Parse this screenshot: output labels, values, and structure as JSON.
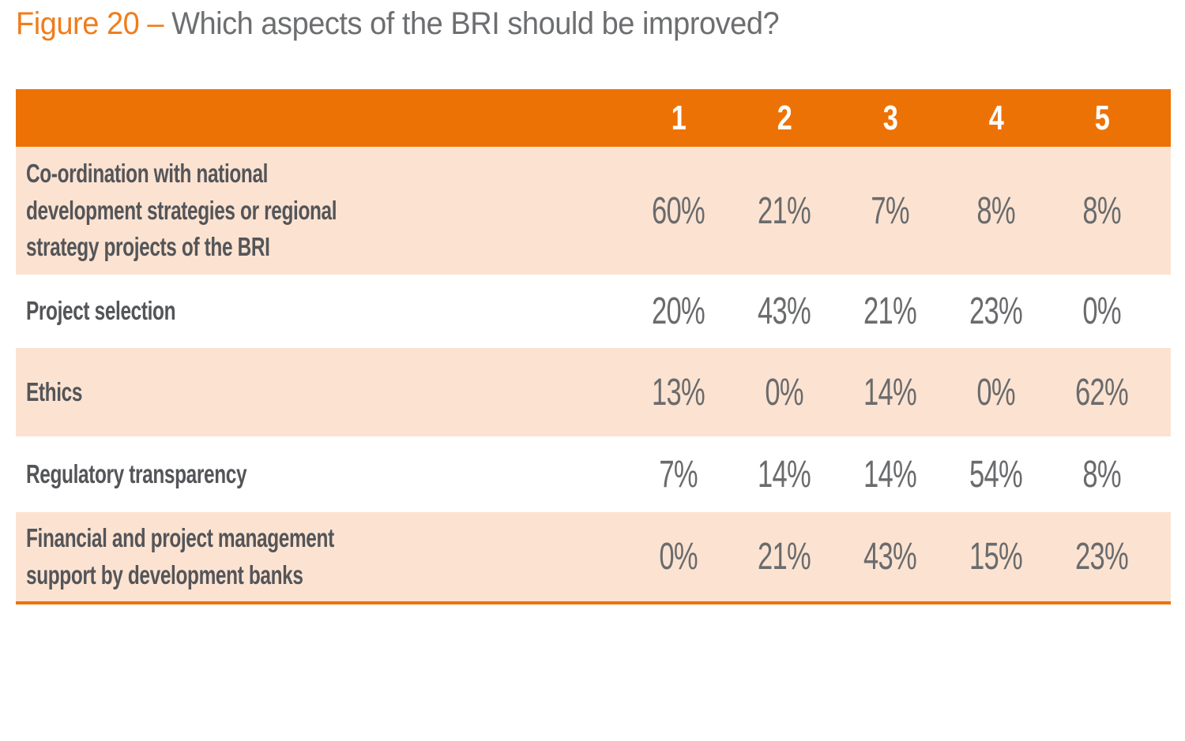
{
  "figure": {
    "label": "Figure 20 –",
    "title": "Which aspects of the BRI should be improved?"
  },
  "table": {
    "columns": [
      "1",
      "2",
      "3",
      "4",
      "5"
    ],
    "rows": [
      {
        "label": "Co-ordination with national\ndevelopment strategies or regional\nstrategy projects of the BRI",
        "values": [
          "60%",
          "21%",
          "7%",
          "8%",
          "8%"
        ]
      },
      {
        "label": "Project selection",
        "values": [
          "20%",
          "43%",
          "21%",
          "23%",
          "0%"
        ]
      },
      {
        "label": "Ethics",
        "values": [
          "13%",
          "0%",
          "14%",
          "0%",
          "62%"
        ]
      },
      {
        "label": "Regulatory transparency",
        "values": [
          "7%",
          "14%",
          "14%",
          "54%",
          "8%"
        ]
      },
      {
        "label": "Financial and project management\nsupport by development banks",
        "values": [
          "0%",
          "21%",
          "43%",
          "15%",
          "23%"
        ]
      }
    ]
  },
  "chart_data": {
    "type": "table",
    "title": "Figure 20 – Which aspects of the BRI should be improved?",
    "columns": [
      "1",
      "2",
      "3",
      "4",
      "5"
    ],
    "unit": "%",
    "rows": [
      {
        "category": "Co-ordination with national development strategies or regional strategy projects of the BRI",
        "values": [
          60,
          21,
          7,
          8,
          8
        ]
      },
      {
        "category": "Project selection",
        "values": [
          20,
          43,
          21,
          23,
          0
        ]
      },
      {
        "category": "Ethics",
        "values": [
          13,
          0,
          14,
          0,
          62
        ]
      },
      {
        "category": "Regulatory transparency",
        "values": [
          7,
          14,
          14,
          54,
          8
        ]
      },
      {
        "category": "Financial and project management support by development banks",
        "values": [
          0,
          21,
          43,
          15,
          23
        ]
      }
    ],
    "legend_position": "none",
    "grid": false
  },
  "colors": {
    "accent": "#ED7205",
    "accent_light": "#FCE3D1",
    "title_accent": "#EF7D1C",
    "title_text": "#6D6E70",
    "label_text": "#545559",
    "value_text": "#6A6B6D",
    "header_number_text": "#FFFFFF"
  }
}
